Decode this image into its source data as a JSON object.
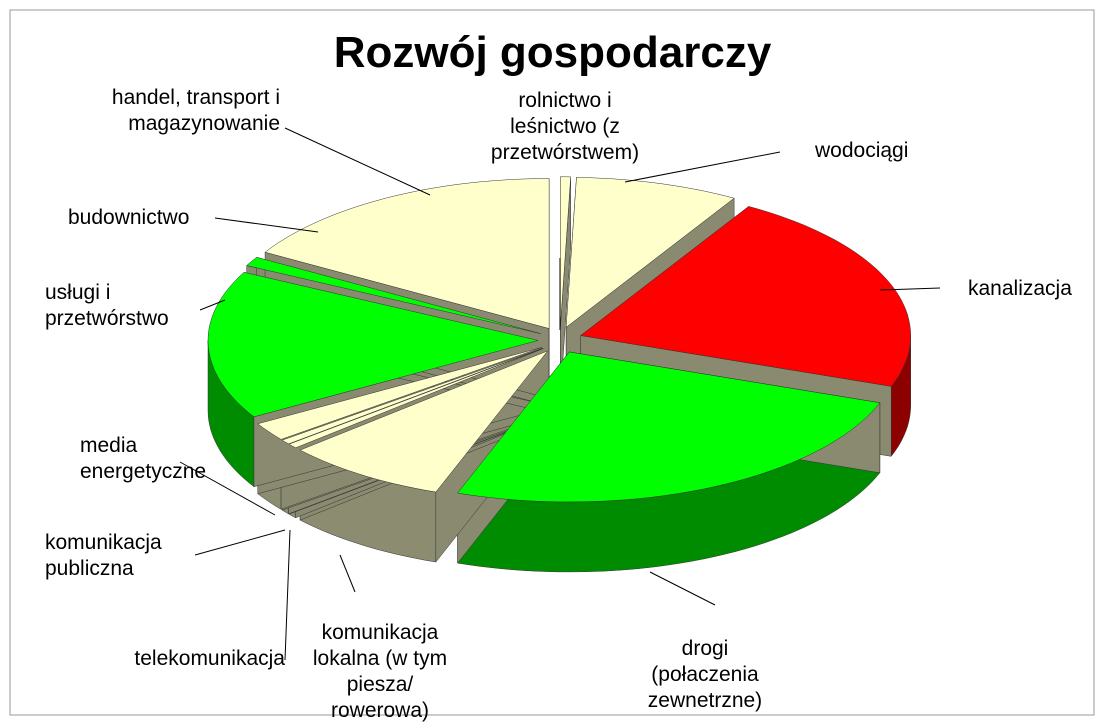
{
  "chart_data": {
    "type": "pie3d",
    "title": "Rozwój gospodarczy",
    "categories": [
      "rolnictwo i leśnictwo (z przetwórstwem)",
      "wodociągi",
      "kanalizacja",
      "drogi (połaczenia zewnetrzne)",
      "komunikacja lokalna (w tym piesza/ rowerowa)",
      "telekomunikacja",
      "komunikacja publiczna",
      "media energetyczne",
      "usługi i przetwórstwo",
      "budownictwo",
      "handel, transport i magazynowanie"
    ],
    "values": [
      0.5,
      8,
      22,
      25,
      8,
      0.5,
      0.5,
      2,
      16,
      1,
      16.5
    ],
    "colors": [
      "#ffffcc",
      "#ffffcc",
      "#ff0000",
      "#00ff00",
      "#ffffcc",
      "#ffffcc",
      "#ffffcc",
      "#ffffcc",
      "#00ff00",
      "#00ff00",
      "#ffffcc"
    ]
  }
}
